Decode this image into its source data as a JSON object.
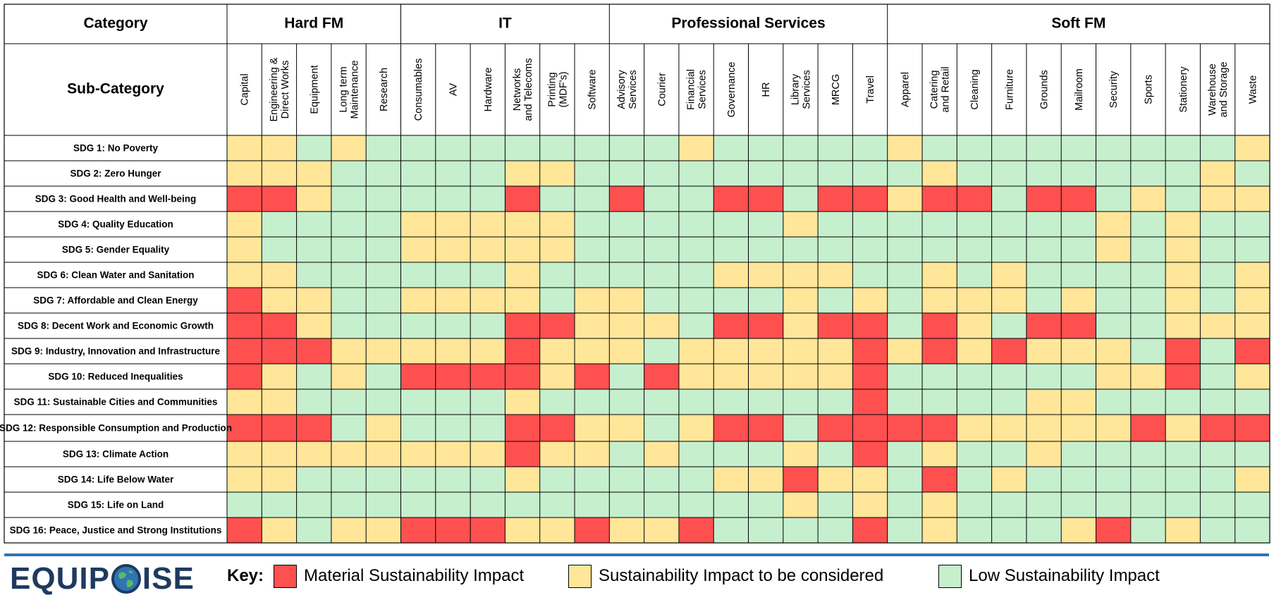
{
  "chart_data": {
    "type": "heatmap",
    "corner_labels": {
      "category": "Category",
      "subcategory": "Sub-Category"
    },
    "groups": [
      {
        "name": "Hard FM",
        "columns": [
          "Capital",
          "Engineering & Direct Works",
          "Equipment",
          "Long term Maintenance",
          "Research"
        ]
      },
      {
        "name": "IT",
        "columns": [
          "Consumables",
          "AV",
          "Hardware",
          "Networks and Telecoms",
          "Printing (MDF's)",
          "Software"
        ]
      },
      {
        "name": "Professional Services",
        "columns": [
          "Advisory Services",
          "Courier",
          "Financial Services",
          "Governance",
          "HR",
          "Library Services",
          "MRCG",
          "Travel"
        ]
      },
      {
        "name": "Soft FM",
        "columns": [
          "Apparel",
          "Catering and Retail",
          "Cleaning",
          "Furniture",
          "Grounds",
          "Mailroom",
          "Security",
          "Sports",
          "Stationery",
          "Warehouse and Storage",
          "Waste"
        ]
      }
    ],
    "columns": [
      "Capital",
      "Engineering & Direct Works",
      "Equipment",
      "Long term Maintenance",
      "Research",
      "Consumables",
      "AV",
      "Hardware",
      "Networks and Telecoms",
      "Printing (MDF's)",
      "Software",
      "Advisory Services",
      "Courier",
      "Financial Services",
      "Governance",
      "HR",
      "Library Services",
      "MRCG",
      "Travel",
      "Apparel",
      "Catering and Retail",
      "Cleaning",
      "Furniture",
      "Grounds",
      "Mailroom",
      "Security",
      "Sports",
      "Stationery",
      "Warehouse and Storage",
      "Waste"
    ],
    "rows": [
      "SDG 1: No Poverty",
      "SDG 2: Zero Hunger",
      "SDG 3: Good Health and Well-being",
      "SDG 4: Quality Education",
      "SDG 5: Gender Equality",
      "SDG 6: Clean Water and Sanitation",
      "SDG 7: Affordable and Clean Energy",
      "SDG 8: Decent Work and Economic Growth",
      "SDG 9: Industry, Innovation and Infrastructure",
      "SDG 10: Reduced Inequalities",
      "SDG 11: Sustainable Cities and Communities",
      "SDG 12: Responsible Consumption and Production",
      "SDG 13: Climate Action",
      "SDG 14: Life Below Water",
      "SDG 15: Life on Land",
      "SDG 16: Peace, Justice and Strong Institutions"
    ],
    "levels": {
      "M": {
        "label": "Material Sustainability Impact",
        "color": "#ff5050"
      },
      "C": {
        "label": "Sustainability Impact to be considered",
        "color": "#ffe699"
      },
      "L": {
        "label": "Low Sustainability Impact",
        "color": "#c6efce"
      }
    },
    "values": [
      "CCLCLLLLLLLLLCLLLLLCLLLLLLLLLC",
      "CCCLLLLLCCLLLLLLLLLLCLLLLLLLCL",
      "MMCLLLLLMLLMLLMMLMMCMMLMMLCLCC",
      "CLLLLCCCCCLLLLLLCLLLLLLLLCLCLL",
      "CLLLLCCCCCLLLLLLLLLLLLLLLCLCLL",
      "CCLLLLLLCLLLLLCCCCLLCLCLLLLCLC",
      "MCCLLCCCCLCCLLLLCLCLCCCLCLLCLC",
      "MMCLLLLLMMCCCLMMCMMLMCLMMLLCCC",
      "MMMCCCCCMCCCLCCCCCMCMCMCCCLMLM",
      "MCLCLMMMMCMLMCCCCCMLLLLLLCCMLC",
      "CCLLLLLLCLLLLLLLLLMLLLLCCLLLLL",
      "MMMLCLLLMMCCLCMMLMMMMCCCCCMCMM",
      "CCCCCCCCMCCLCLLLCLMLCLLCLLLLLL",
      "CCLLLLLLCLLLLLCCMCCLMLCLLLLLLC",
      "LLLLLLLLLLLLLLLLCLCLCLLLLLLLLL",
      "MCLCCMMMCCMCCMLLLLMLCLLLCMLCLL"
    ]
  },
  "legend": {
    "key_label": "Key:",
    "items": [
      {
        "label": "Material Sustainability Impact",
        "color": "#ff5050"
      },
      {
        "label": "Sustainability Impact to be considered",
        "color": "#ffe699"
      },
      {
        "label": "Low Sustainability Impact",
        "color": "#c6efce"
      }
    ]
  },
  "brand": {
    "name": "EQUIPOISE",
    "text_before": "EQUIP",
    "text_after": "ISE",
    "color": "#1f3a5f",
    "divider_color": "#2e75b6"
  }
}
